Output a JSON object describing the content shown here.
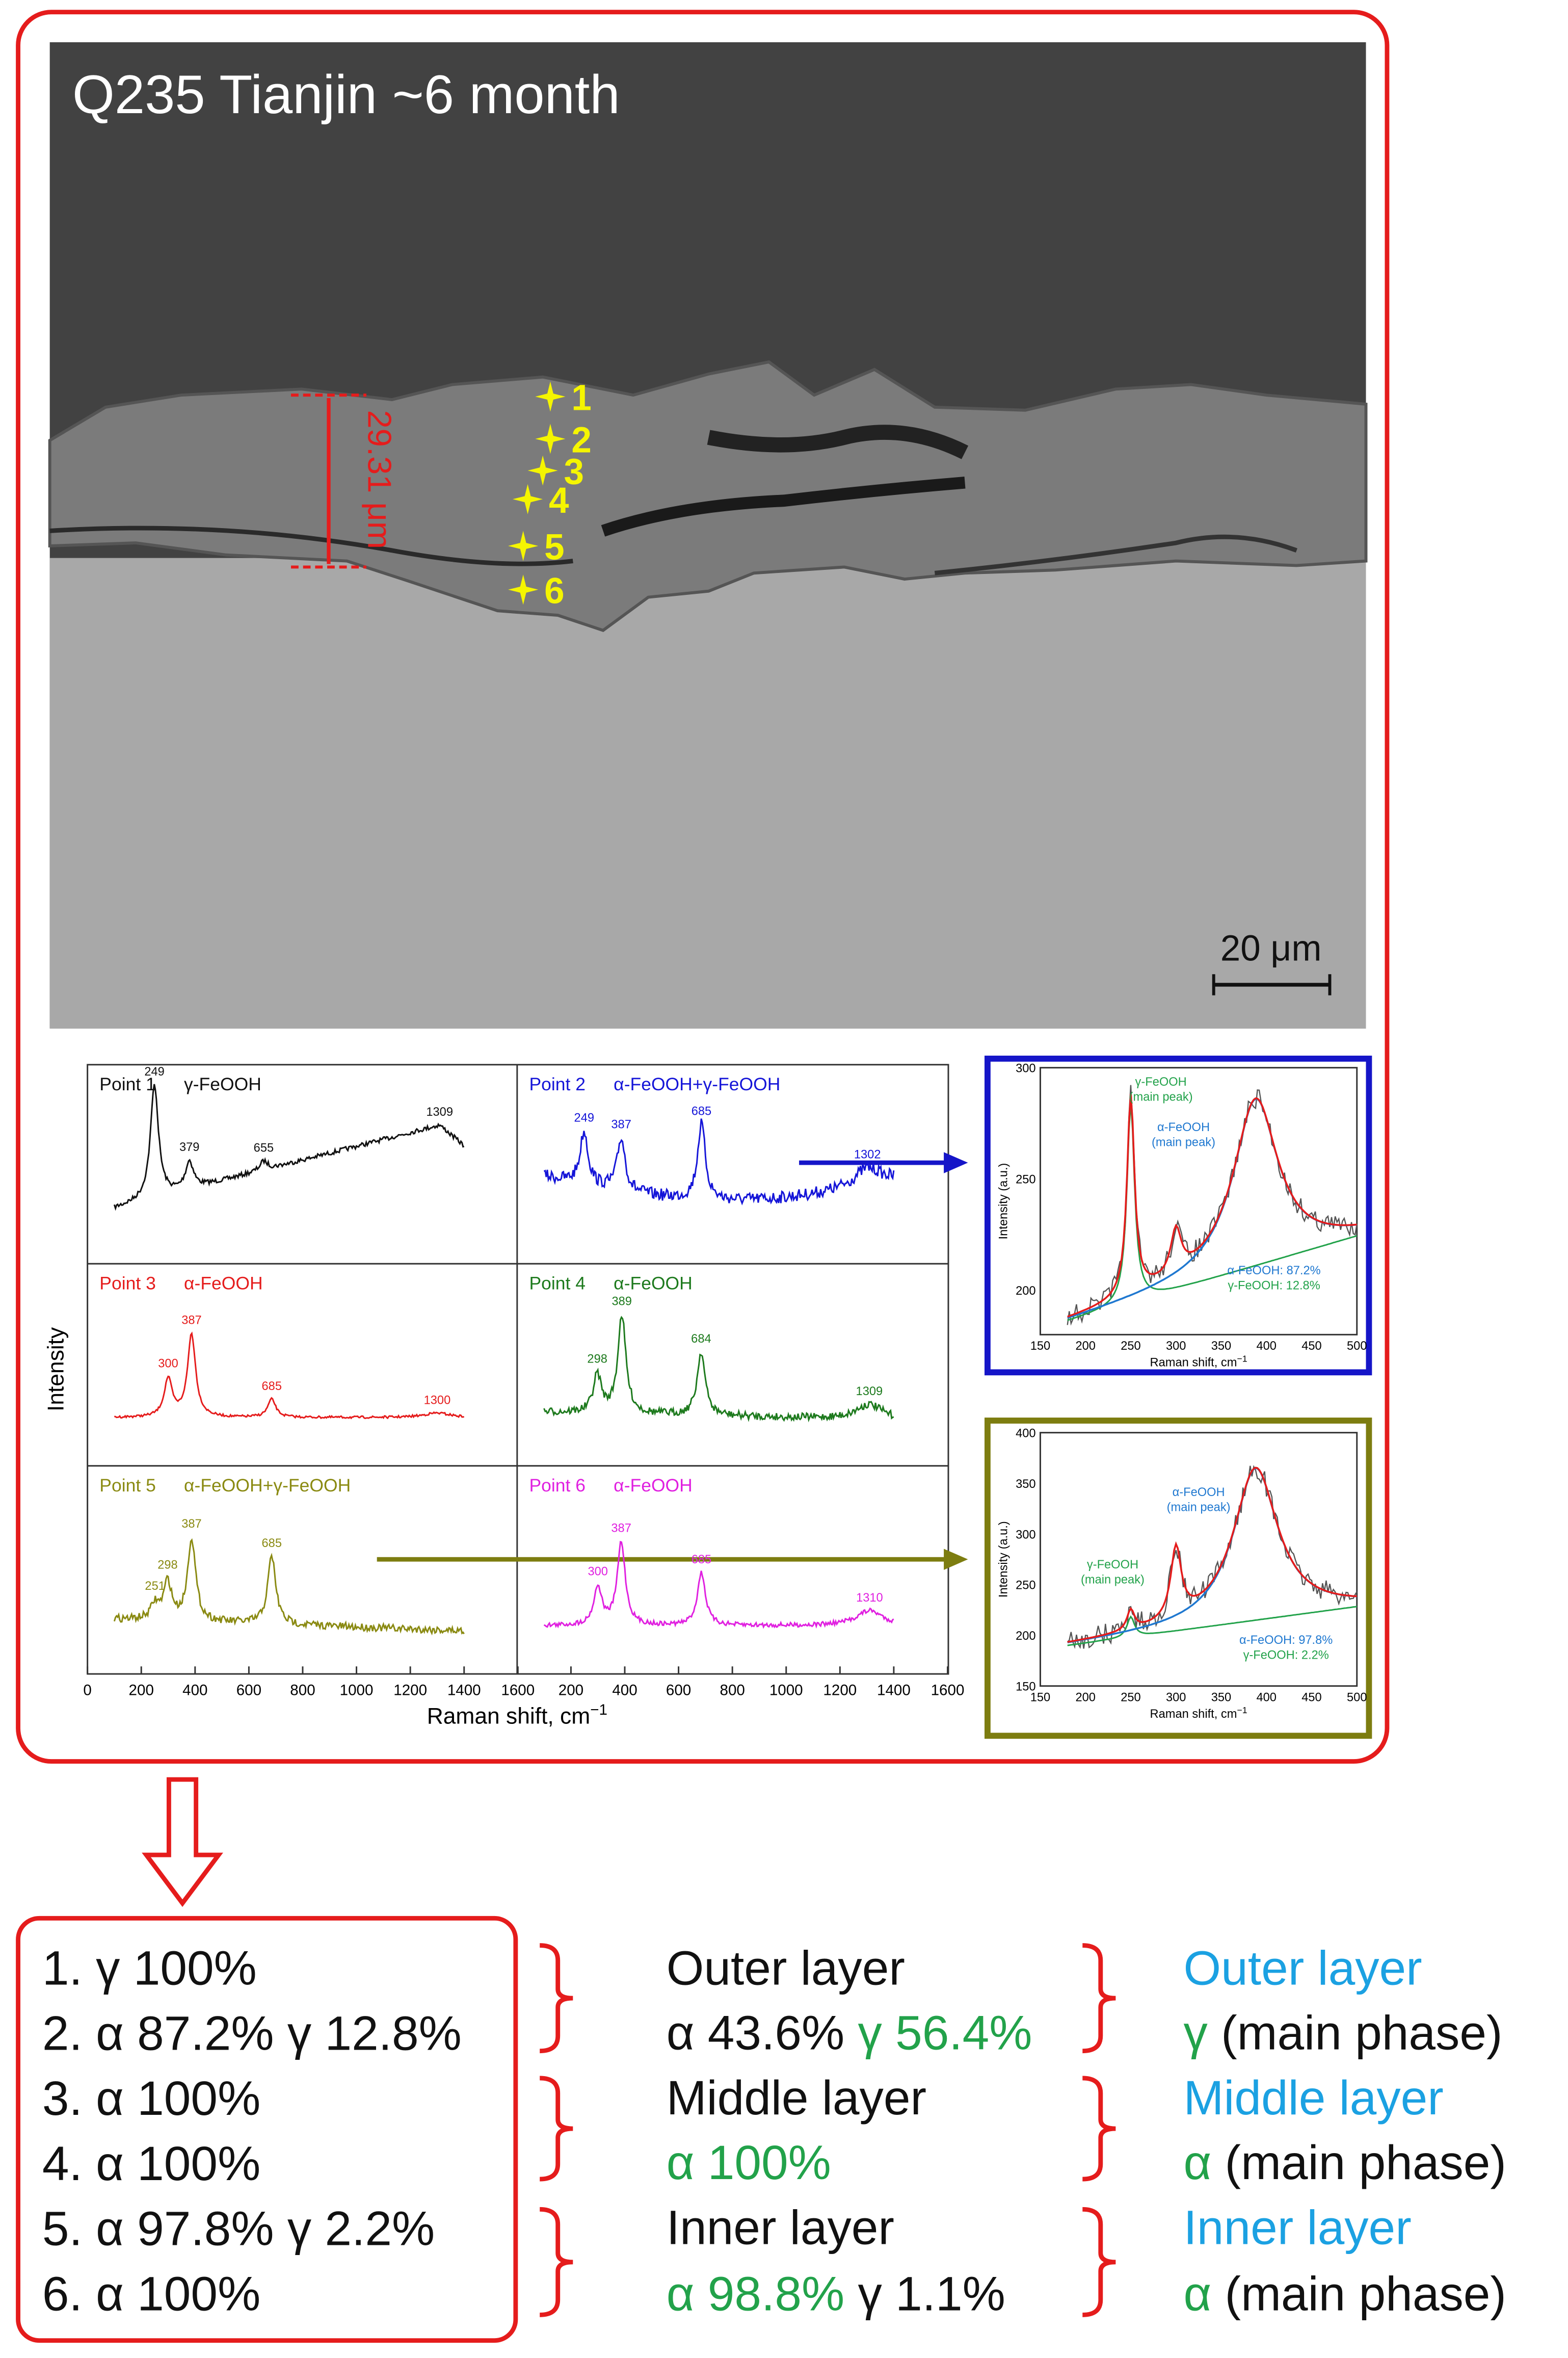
{
  "micrograph": {
    "title": "Q235 Tianjin ~6 month",
    "thickness": "29.31 μm",
    "points": [
      "1",
      "2",
      "3",
      "4",
      "5",
      "6"
    ],
    "scale_bar": "20 μm"
  },
  "spectra": {
    "y_label": "Intensity",
    "x_label": "Raman shift, cm",
    "x_label_sup": "−1",
    "x_ticks_left": [
      "0",
      "200",
      "400",
      "600",
      "800",
      "1000",
      "1200",
      "1400",
      "1600"
    ],
    "x_ticks_right": [
      "200",
      "400",
      "600",
      "800",
      "1000",
      "1200",
      "1400",
      "1600"
    ],
    "panels": [
      {
        "point": "Point 1",
        "phase": "γ-FeOOH",
        "peaks": [
          "249",
          "379",
          "655",
          "1309"
        ]
      },
      {
        "point": "Point 2",
        "phase": "α-FeOOH+γ-FeOOH",
        "peaks": [
          "249",
          "387",
          "685",
          "1302"
        ]
      },
      {
        "point": "Point 3",
        "phase": "α-FeOOH",
        "peaks": [
          "300",
          "387",
          "685",
          "1300"
        ]
      },
      {
        "point": "Point 4",
        "phase": "α-FeOOH",
        "peaks": [
          "298",
          "389",
          "684",
          "1309"
        ]
      },
      {
        "point": "Point 5",
        "phase": "α-FeOOH+γ-FeOOH",
        "peaks": [
          "251",
          "298",
          "387",
          "685"
        ]
      },
      {
        "point": "Point 6",
        "phase": "α-FeOOH",
        "peaks": [
          "300",
          "387",
          "685",
          "1310"
        ]
      }
    ]
  },
  "fits": [
    {
      "y_label": "Intensity (a.u.)",
      "x_label": "Raman shift, cm",
      "x_label_sup": "−1",
      "yticks": [
        "300",
        "250",
        "200"
      ],
      "xticks": [
        "150",
        "200",
        "250",
        "300",
        "350",
        "400",
        "450",
        "500"
      ],
      "gamma_label": "γ-FeOOH",
      "gamma_note": "(main peak)",
      "alpha_label": "α-FeOOH",
      "alpha_note": "(main peak)",
      "alpha_result": "α-FeOOH: 87.2%",
      "gamma_result": "γ-FeOOH: 12.8%"
    },
    {
      "y_label": "Intensity (a.u.)",
      "x_label": "Raman shift, cm",
      "x_label_sup": "−1",
      "yticks": [
        "400",
        "350",
        "300",
        "250",
        "200",
        "150"
      ],
      "xticks": [
        "150",
        "200",
        "250",
        "300",
        "350",
        "400",
        "450",
        "500"
      ],
      "gamma_label": "γ-FeOOH",
      "gamma_note": "(main peak)",
      "alpha_label": "α-FeOOH",
      "alpha_note": "(main peak)",
      "alpha_result": "α-FeOOH: 97.8%",
      "gamma_result": "γ-FeOOH: 2.2%"
    }
  ],
  "summary": {
    "points": [
      "1. γ 100%",
      "2. α 87.2% γ 12.8%",
      "3. α 100%",
      "4. α 100%",
      "5. α 97.8% γ 2.2%",
      "6. α 100%"
    ],
    "layers": [
      {
        "name": "Outer layer",
        "alpha": "α 43.6%",
        "gamma": "γ 56.4%"
      },
      {
        "name": "Middle layer",
        "alpha": "α 100%"
      },
      {
        "name": "Inner layer",
        "alpha": "α 98.8%",
        "gamma": "γ 1.1%"
      }
    ],
    "phases": [
      {
        "name": "Outer layer",
        "phase": "γ",
        "note": "(main phase)"
      },
      {
        "name": "Middle layer",
        "phase": "α",
        "note": "(main phase)"
      },
      {
        "name": "Inner layer",
        "phase": "α",
        "note": "(main phase)"
      }
    ]
  }
}
